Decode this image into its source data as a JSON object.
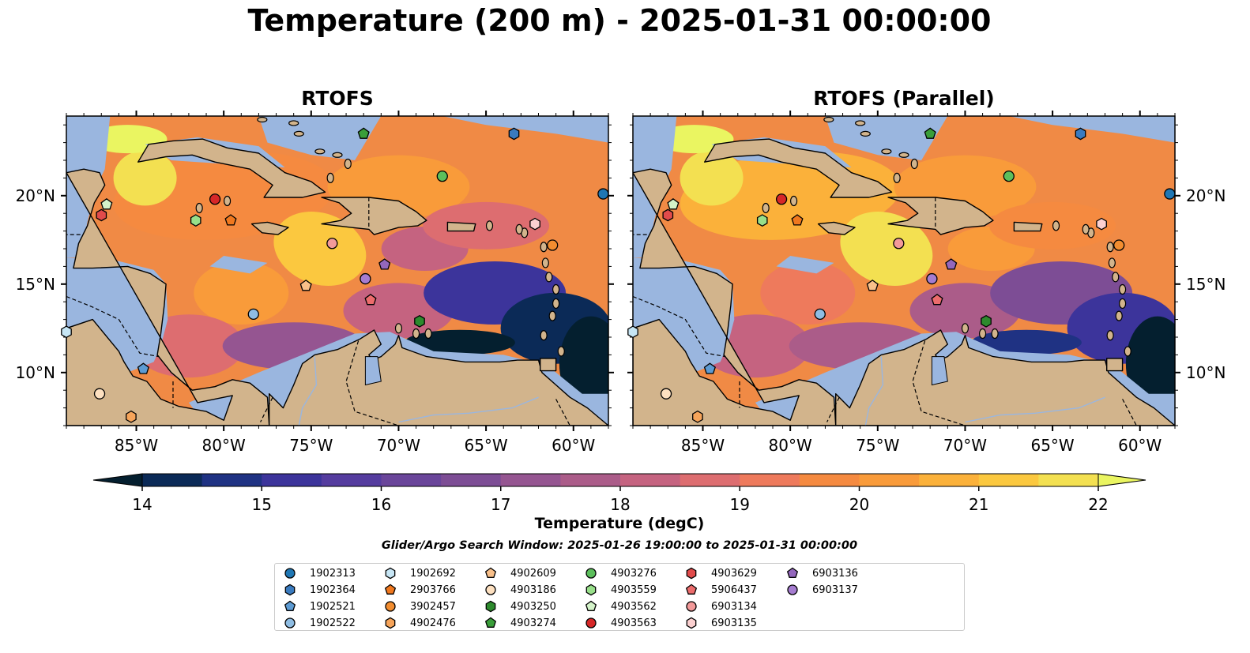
{
  "figure": {
    "suptitle": "Temperature (200 m) - 2025-01-31 00:00:00",
    "colorbar_label": "Temperature (degC)",
    "search_window": "Glider/Argo Search Window: 2025-01-26 19:00:00 to 2025-01-31 00:00:00"
  },
  "colors": {
    "land": "#d2b48c",
    "shelf": "#9ab6df",
    "deep_bg": "#f08a45",
    "colormap": [
      "#041f2f",
      "#0b2a57",
      "#1f3283",
      "#3c349b",
      "#553c9f",
      "#6a459a",
      "#7d4d95",
      "#955591",
      "#ab5c89",
      "#c56380",
      "#dd6d70",
      "#ee7a5c",
      "#f58a40",
      "#f99b3a",
      "#fbb13a",
      "#fbc83f",
      "#f3e051",
      "#eaf561"
    ]
  },
  "chart_data": [
    {
      "type": "heatmap",
      "title": "RTOFS",
      "variable": "Temperature (degC)",
      "depth_m": 200,
      "xlim": [
        -89,
        -58
      ],
      "ylim": [
        7,
        24.5
      ],
      "xticks": [
        -85,
        -80,
        -75,
        -70,
        -65,
        -60
      ],
      "xtick_labels": [
        "85°W",
        "80°W",
        "75°W",
        "70°W",
        "65°W",
        "60°W"
      ],
      "yticks": [
        10,
        15,
        20
      ],
      "ytick_labels": [
        "10°N",
        "15°N",
        "20°N"
      ],
      "colorbar": {
        "min": 14,
        "max": 22,
        "step": 0.5,
        "ticks": [
          14,
          15,
          16,
          17,
          18,
          19,
          20,
          21,
          22
        ],
        "extend": "both"
      },
      "summary": {
        "typical_open_water": 20,
        "warm_core_max": 22,
        "cold_south_east_min": 14
      }
    },
    {
      "type": "heatmap",
      "title": "RTOFS (Parallel)",
      "variable": "Temperature (degC)",
      "depth_m": 200,
      "xlim": [
        -89,
        -58
      ],
      "ylim": [
        7,
        24.5
      ],
      "xticks": [
        -85,
        -80,
        -75,
        -70,
        -65,
        -60
      ],
      "xtick_labels": [
        "85°W",
        "80°W",
        "75°W",
        "70°W",
        "65°W",
        "60°W"
      ],
      "yticks": [
        10,
        15,
        20
      ],
      "ytick_labels": [
        "10°N",
        "15°N",
        "20°N"
      ],
      "colorbar": {
        "min": 14,
        "max": 22,
        "step": 0.5,
        "ticks": [
          14,
          15,
          16,
          17,
          18,
          19,
          20,
          21,
          22
        ],
        "extend": "both"
      },
      "summary": {
        "typical_open_water": 20,
        "warm_core_max": 22,
        "cold_south_east_min": 14
      }
    }
  ],
  "platforms": [
    {
      "id": "1902313",
      "marker": "circle",
      "color": "#1f77b4",
      "lon": -58.3,
      "lat": 20.1
    },
    {
      "id": "1902364",
      "marker": "hexagon",
      "color": "#3a7bbf",
      "lon": -63.4,
      "lat": 23.5
    },
    {
      "id": "1902521",
      "marker": "pentagon",
      "color": "#5d9bd3",
      "lon": -84.6,
      "lat": 10.2
    },
    {
      "id": "1902522",
      "marker": "circle",
      "color": "#8fbde3",
      "lon": -78.3,
      "lat": 13.3
    },
    {
      "id": "1902692",
      "marker": "hexagon",
      "color": "#c7e6f5",
      "lon": -89.0,
      "lat": 12.3
    },
    {
      "id": "2903766",
      "marker": "pentagon",
      "color": "#f0781e",
      "lon": -79.6,
      "lat": 18.6
    },
    {
      "id": "3902457",
      "marker": "circle",
      "color": "#f28d30",
      "lon": -61.2,
      "lat": 17.2
    },
    {
      "id": "4902476",
      "marker": "hexagon",
      "color": "#f6a45a",
      "lon": -85.3,
      "lat": 7.5
    },
    {
      "id": "4902609",
      "marker": "pentagon",
      "color": "#f9c08a",
      "lon": -75.3,
      "lat": 14.9
    },
    {
      "id": "4903186",
      "marker": "circle",
      "color": "#fde0c0",
      "lon": -87.1,
      "lat": 8.8
    },
    {
      "id": "4903250",
      "marker": "hexagon",
      "color": "#2d8a2d",
      "lon": -68.8,
      "lat": 12.9
    },
    {
      "id": "4903274",
      "marker": "pentagon",
      "color": "#3a9e3a",
      "lon": -72.0,
      "lat": 23.5
    },
    {
      "id": "4903276",
      "marker": "circle",
      "color": "#5cbf5c",
      "lon": -67.5,
      "lat": 21.1
    },
    {
      "id": "4903559",
      "marker": "hexagon",
      "color": "#98df8a",
      "lon": -81.6,
      "lat": 18.6
    },
    {
      "id": "4903562",
      "marker": "pentagon",
      "color": "#d4f3c9",
      "lon": -86.7,
      "lat": 19.5
    },
    {
      "id": "4903563",
      "marker": "circle",
      "color": "#d62728",
      "lon": -80.5,
      "lat": 19.8
    },
    {
      "id": "4903629",
      "marker": "hexagon",
      "color": "#e14b4b",
      "lon": -87.0,
      "lat": 18.9
    },
    {
      "id": "5906437",
      "marker": "pentagon",
      "color": "#ec6c6c",
      "lon": -71.6,
      "lat": 14.1
    },
    {
      "id": "6903134",
      "marker": "circle",
      "color": "#f39a9a",
      "lon": -73.8,
      "lat": 17.3
    },
    {
      "id": "6903135",
      "marker": "hexagon",
      "color": "#fbd0d0",
      "lon": -62.2,
      "lat": 18.4
    },
    {
      "id": "6903136",
      "marker": "pentagon",
      "color": "#9467bd",
      "lon": -70.8,
      "lat": 16.1
    },
    {
      "id": "6903137",
      "marker": "circle",
      "color": "#a57cd0",
      "lon": -71.9,
      "lat": 15.3
    }
  ]
}
